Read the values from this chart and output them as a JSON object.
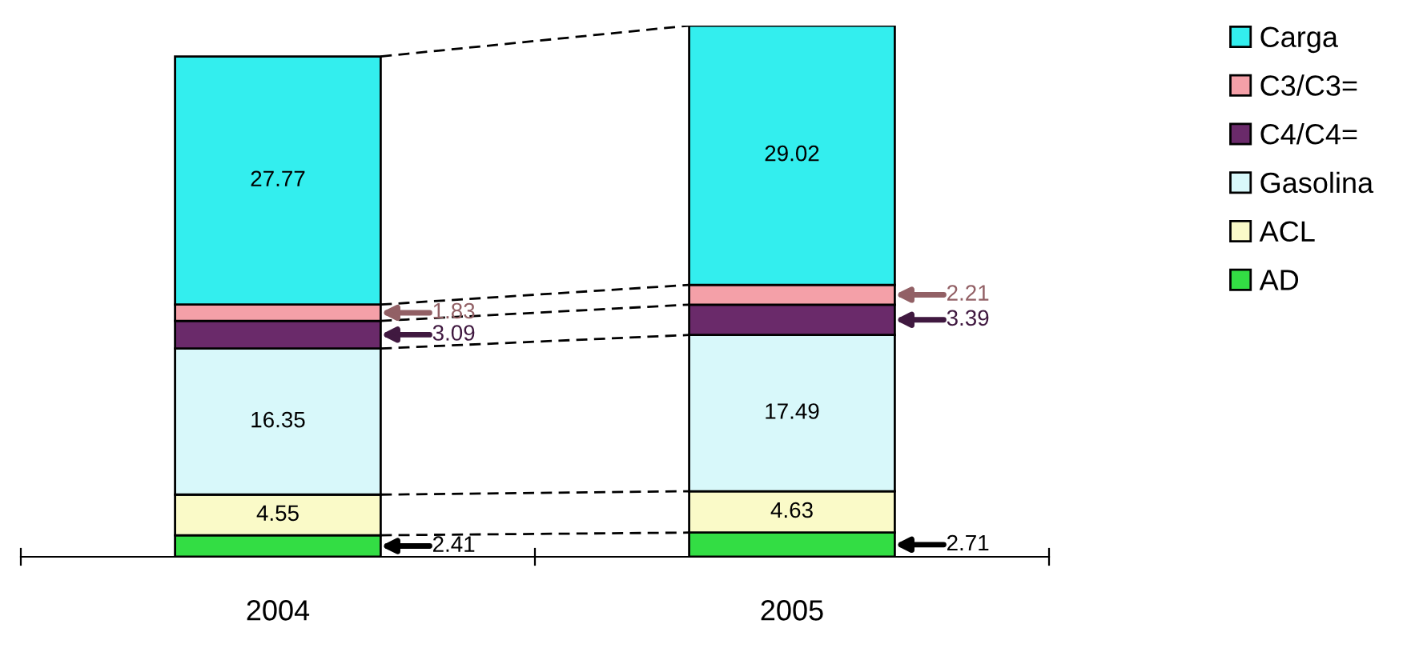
{
  "chart_data": {
    "type": "bar",
    "stacked": true,
    "categories": [
      "2004",
      "2005"
    ],
    "series": [
      {
        "name": "AD",
        "color": "#33dd44",
        "values": [
          2.41,
          2.71
        ]
      },
      {
        "name": "ACL",
        "color": "#fafac8",
        "values": [
          4.55,
          4.63
        ]
      },
      {
        "name": "Gasolina",
        "color": "#d8f8fa",
        "values": [
          16.35,
          17.49
        ]
      },
      {
        "name": "C4/C4=",
        "color": "#6a2a6a",
        "values": [
          3.09,
          3.39
        ]
      },
      {
        "name": "C3/C3=",
        "color": "#f4a0a8",
        "values": [
          1.83,
          2.21
        ]
      },
      {
        "name": "Carga",
        "color": "#33eeee",
        "values": [
          27.77,
          29.02
        ]
      }
    ],
    "data_labels": true,
    "legend": "right",
    "grid": false
  }
}
